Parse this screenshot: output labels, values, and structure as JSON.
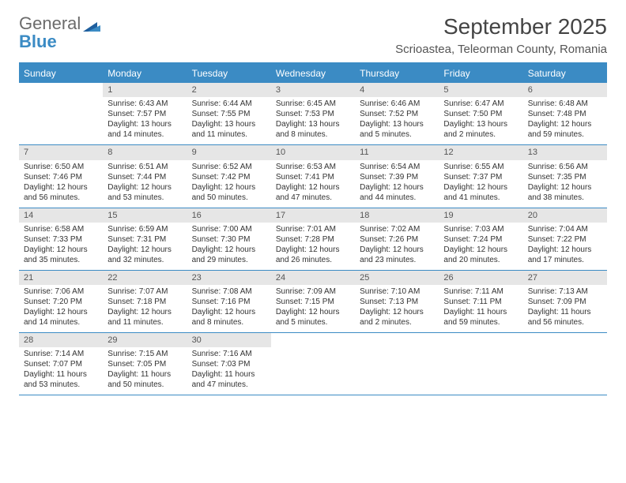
{
  "logo": {
    "word1": "General",
    "word2": "Blue"
  },
  "title": "September 2025",
  "location": "Scrioastea, Teleorman County, Romania",
  "headers": [
    "Sunday",
    "Monday",
    "Tuesday",
    "Wednesday",
    "Thursday",
    "Friday",
    "Saturday"
  ],
  "colors": {
    "header_bg": "#3b8bc4",
    "header_fg": "#ffffff",
    "daynum_bg": "#e6e6e6",
    "border": "#3b8bc4"
  },
  "cells": [
    {
      "num": "",
      "sr": "",
      "ss": "",
      "dl": ""
    },
    {
      "num": "1",
      "sr": "Sunrise: 6:43 AM",
      "ss": "Sunset: 7:57 PM",
      "dl": "Daylight: 13 hours and 14 minutes."
    },
    {
      "num": "2",
      "sr": "Sunrise: 6:44 AM",
      "ss": "Sunset: 7:55 PM",
      "dl": "Daylight: 13 hours and 11 minutes."
    },
    {
      "num": "3",
      "sr": "Sunrise: 6:45 AM",
      "ss": "Sunset: 7:53 PM",
      "dl": "Daylight: 13 hours and 8 minutes."
    },
    {
      "num": "4",
      "sr": "Sunrise: 6:46 AM",
      "ss": "Sunset: 7:52 PM",
      "dl": "Daylight: 13 hours and 5 minutes."
    },
    {
      "num": "5",
      "sr": "Sunrise: 6:47 AM",
      "ss": "Sunset: 7:50 PM",
      "dl": "Daylight: 13 hours and 2 minutes."
    },
    {
      "num": "6",
      "sr": "Sunrise: 6:48 AM",
      "ss": "Sunset: 7:48 PM",
      "dl": "Daylight: 12 hours and 59 minutes."
    },
    {
      "num": "7",
      "sr": "Sunrise: 6:50 AM",
      "ss": "Sunset: 7:46 PM",
      "dl": "Daylight: 12 hours and 56 minutes."
    },
    {
      "num": "8",
      "sr": "Sunrise: 6:51 AM",
      "ss": "Sunset: 7:44 PM",
      "dl": "Daylight: 12 hours and 53 minutes."
    },
    {
      "num": "9",
      "sr": "Sunrise: 6:52 AM",
      "ss": "Sunset: 7:42 PM",
      "dl": "Daylight: 12 hours and 50 minutes."
    },
    {
      "num": "10",
      "sr": "Sunrise: 6:53 AM",
      "ss": "Sunset: 7:41 PM",
      "dl": "Daylight: 12 hours and 47 minutes."
    },
    {
      "num": "11",
      "sr": "Sunrise: 6:54 AM",
      "ss": "Sunset: 7:39 PM",
      "dl": "Daylight: 12 hours and 44 minutes."
    },
    {
      "num": "12",
      "sr": "Sunrise: 6:55 AM",
      "ss": "Sunset: 7:37 PM",
      "dl": "Daylight: 12 hours and 41 minutes."
    },
    {
      "num": "13",
      "sr": "Sunrise: 6:56 AM",
      "ss": "Sunset: 7:35 PM",
      "dl": "Daylight: 12 hours and 38 minutes."
    },
    {
      "num": "14",
      "sr": "Sunrise: 6:58 AM",
      "ss": "Sunset: 7:33 PM",
      "dl": "Daylight: 12 hours and 35 minutes."
    },
    {
      "num": "15",
      "sr": "Sunrise: 6:59 AM",
      "ss": "Sunset: 7:31 PM",
      "dl": "Daylight: 12 hours and 32 minutes."
    },
    {
      "num": "16",
      "sr": "Sunrise: 7:00 AM",
      "ss": "Sunset: 7:30 PM",
      "dl": "Daylight: 12 hours and 29 minutes."
    },
    {
      "num": "17",
      "sr": "Sunrise: 7:01 AM",
      "ss": "Sunset: 7:28 PM",
      "dl": "Daylight: 12 hours and 26 minutes."
    },
    {
      "num": "18",
      "sr": "Sunrise: 7:02 AM",
      "ss": "Sunset: 7:26 PM",
      "dl": "Daylight: 12 hours and 23 minutes."
    },
    {
      "num": "19",
      "sr": "Sunrise: 7:03 AM",
      "ss": "Sunset: 7:24 PM",
      "dl": "Daylight: 12 hours and 20 minutes."
    },
    {
      "num": "20",
      "sr": "Sunrise: 7:04 AM",
      "ss": "Sunset: 7:22 PM",
      "dl": "Daylight: 12 hours and 17 minutes."
    },
    {
      "num": "21",
      "sr": "Sunrise: 7:06 AM",
      "ss": "Sunset: 7:20 PM",
      "dl": "Daylight: 12 hours and 14 minutes."
    },
    {
      "num": "22",
      "sr": "Sunrise: 7:07 AM",
      "ss": "Sunset: 7:18 PM",
      "dl": "Daylight: 12 hours and 11 minutes."
    },
    {
      "num": "23",
      "sr": "Sunrise: 7:08 AM",
      "ss": "Sunset: 7:16 PM",
      "dl": "Daylight: 12 hours and 8 minutes."
    },
    {
      "num": "24",
      "sr": "Sunrise: 7:09 AM",
      "ss": "Sunset: 7:15 PM",
      "dl": "Daylight: 12 hours and 5 minutes."
    },
    {
      "num": "25",
      "sr": "Sunrise: 7:10 AM",
      "ss": "Sunset: 7:13 PM",
      "dl": "Daylight: 12 hours and 2 minutes."
    },
    {
      "num": "26",
      "sr": "Sunrise: 7:11 AM",
      "ss": "Sunset: 7:11 PM",
      "dl": "Daylight: 11 hours and 59 minutes."
    },
    {
      "num": "27",
      "sr": "Sunrise: 7:13 AM",
      "ss": "Sunset: 7:09 PM",
      "dl": "Daylight: 11 hours and 56 minutes."
    },
    {
      "num": "28",
      "sr": "Sunrise: 7:14 AM",
      "ss": "Sunset: 7:07 PM",
      "dl": "Daylight: 11 hours and 53 minutes."
    },
    {
      "num": "29",
      "sr": "Sunrise: 7:15 AM",
      "ss": "Sunset: 7:05 PM",
      "dl": "Daylight: 11 hours and 50 minutes."
    },
    {
      "num": "30",
      "sr": "Sunrise: 7:16 AM",
      "ss": "Sunset: 7:03 PM",
      "dl": "Daylight: 11 hours and 47 minutes."
    },
    {
      "num": "",
      "sr": "",
      "ss": "",
      "dl": ""
    },
    {
      "num": "",
      "sr": "",
      "ss": "",
      "dl": ""
    },
    {
      "num": "",
      "sr": "",
      "ss": "",
      "dl": ""
    },
    {
      "num": "",
      "sr": "",
      "ss": "",
      "dl": ""
    }
  ]
}
